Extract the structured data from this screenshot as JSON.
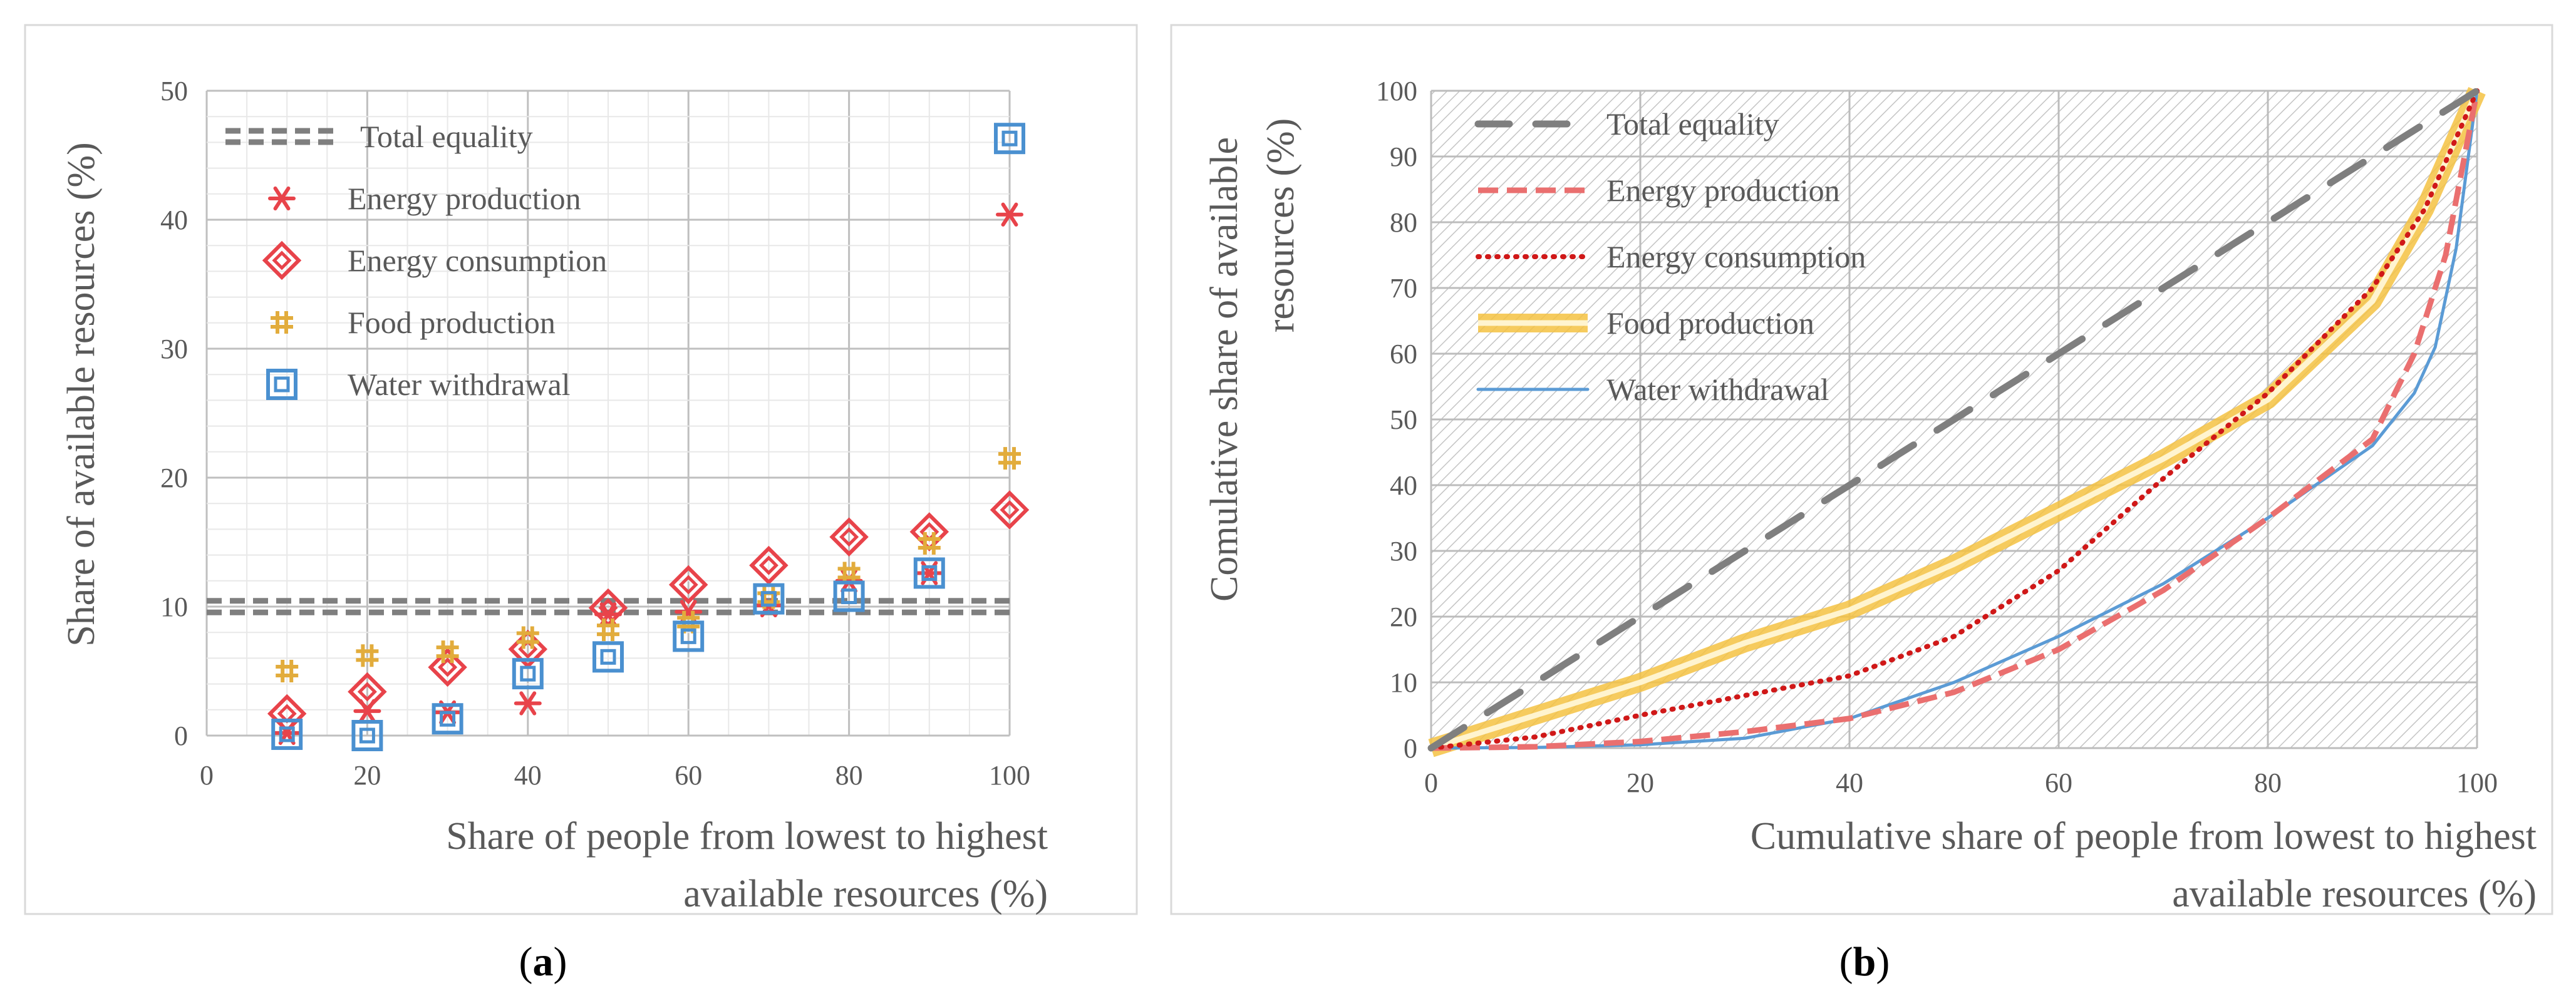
{
  "chart_data": [
    {
      "type": "scatter",
      "panel": "a",
      "caption_open": "(",
      "caption_letter": "a",
      "caption_close": ")",
      "ylabel": "Share of available resources (%)",
      "xlabel_lines": [
        "Share of people from lowest to highest",
        "available resources (%)"
      ],
      "xlim": [
        0,
        100
      ],
      "ylim": [
        0,
        50
      ],
      "xticks": [
        "0",
        "20",
        "40",
        "60",
        "80",
        "100"
      ],
      "yticks": [
        "0",
        "10",
        "20",
        "30",
        "40",
        "50"
      ],
      "grid": true,
      "legend_position": "top-left",
      "x": [
        10,
        20,
        30,
        40,
        50,
        60,
        70,
        80,
        90,
        100
      ],
      "series": [
        {
          "name": "Total equality",
          "marker": "dashed-line",
          "color": "#7f7f7f",
          "values": [
            10,
            10
          ]
        },
        {
          "name": "Energy production",
          "marker": "asterisk",
          "color": "#e8434a",
          "values": [
            0.2,
            1.9,
            1.8,
            2.5,
            9.4,
            9.6,
            10.1,
            12.0,
            12.6,
            40.4
          ]
        },
        {
          "name": "Energy consumption",
          "marker": "diamond",
          "color": "#e8434a",
          "values": [
            1.7,
            3.4,
            5.3,
            6.7,
            9.9,
            11.7,
            13.2,
            15.4,
            15.8,
            17.5
          ]
        },
        {
          "name": "Food production",
          "marker": "plus",
          "color": "#e2ac3c",
          "values": [
            5.0,
            6.2,
            6.5,
            7.6,
            8.2,
            8.8,
            10.7,
            12.6,
            14.9,
            21.5
          ]
        },
        {
          "name": "Water withdrawal",
          "marker": "square",
          "color": "#4a90d0",
          "values": [
            0.1,
            0.0,
            1.3,
            4.8,
            6.1,
            7.7,
            10.6,
            10.8,
            12.6,
            46.3
          ]
        }
      ]
    },
    {
      "type": "line",
      "panel": "b",
      "caption_open": "(",
      "caption_letter": "b",
      "caption_close": ")",
      "ylabel_lines": [
        "Comulative share of available",
        "resources    (%)"
      ],
      "xlabel_lines": [
        "Cumulative share of people from lowest to highest",
        "available resources (%)"
      ],
      "xlim": [
        0,
        100
      ],
      "ylim": [
        0,
        100
      ],
      "xticks": [
        "0",
        "20",
        "40",
        "60",
        "80",
        "100"
      ],
      "yticks": [
        "0",
        "10",
        "20",
        "30",
        "40",
        "50",
        "60",
        "70",
        "80",
        "90",
        "100"
      ],
      "grid": true,
      "legend_position": "top-left",
      "series": [
        {
          "name": "Total equality",
          "style": "long-dash",
          "color": "#7f7f7f",
          "x": [
            0,
            100
          ],
          "y": [
            0,
            100
          ]
        },
        {
          "name": "Energy production",
          "style": "dash",
          "color": "#ea6f6f",
          "x": [
            0,
            10,
            20,
            30,
            40,
            50,
            60,
            70,
            80,
            90,
            94,
            97,
            100
          ],
          "y": [
            0,
            0.2,
            1.0,
            2.5,
            4.5,
            8.5,
            15.0,
            24.0,
            35.0,
            47.0,
            60.0,
            75.0,
            100
          ]
        },
        {
          "name": "Energy consumption",
          "style": "dotted",
          "color": "#d01818",
          "x": [
            0,
            10,
            20,
            30,
            40,
            50,
            60,
            70,
            80,
            90,
            95,
            100
          ],
          "y": [
            0,
            1.7,
            5.0,
            8.0,
            11.0,
            17.0,
            27.0,
            41.0,
            54.0,
            70.0,
            82.0,
            100
          ]
        },
        {
          "name": "Food production",
          "style": "thick-band",
          "color": "#f5c242",
          "x": [
            0,
            10,
            20,
            30,
            40,
            50,
            60,
            70,
            80,
            90,
            95,
            100
          ],
          "y": [
            0,
            5.0,
            10.0,
            16.0,
            21.0,
            28.0,
            36.0,
            44.0,
            53.0,
            68.0,
            82.0,
            100
          ]
        },
        {
          "name": "Water withdrawal",
          "style": "solid",
          "color": "#5b9bd5",
          "x": [
            0,
            10,
            20,
            30,
            40,
            50,
            60,
            70,
            80,
            90,
            94,
            96,
            98,
            100
          ],
          "y": [
            0,
            0.1,
            0.5,
            1.5,
            4.5,
            10.0,
            17.0,
            25.0,
            35.0,
            46.0,
            54.0,
            61.0,
            76.0,
            100
          ]
        }
      ]
    }
  ]
}
